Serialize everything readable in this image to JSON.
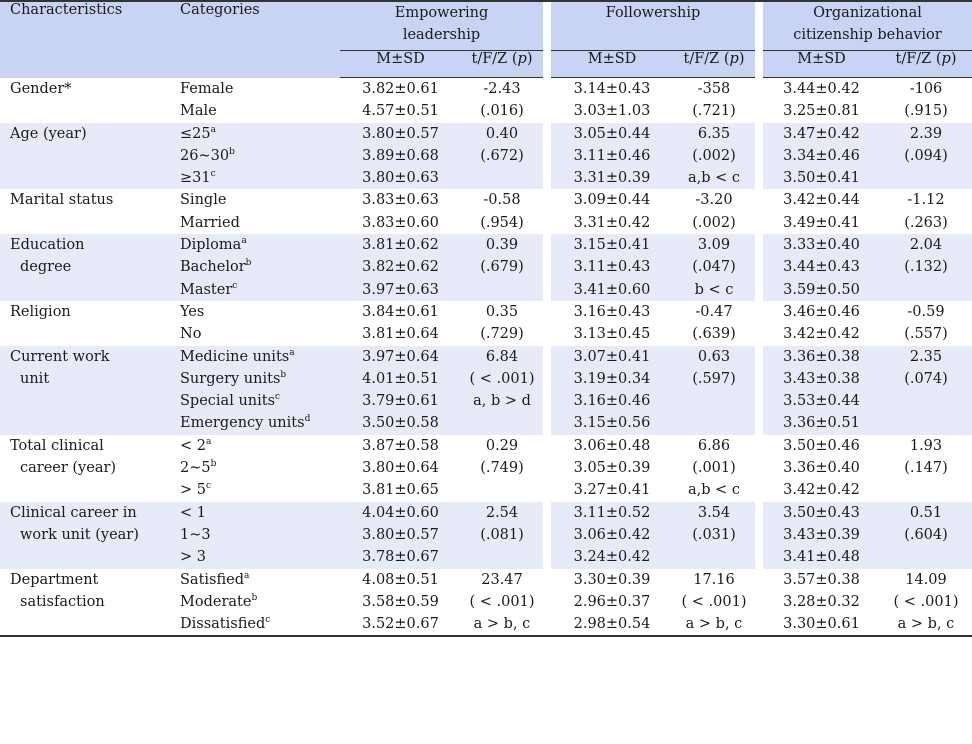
{
  "header": {
    "characteristics": "Characteristics",
    "categories": "Categories",
    "groups": [
      {
        "line1": "Empowering",
        "line2": "leadership"
      },
      {
        "line1": "Followership",
        "line2": ""
      },
      {
        "line1": "Organizational",
        "line2": "citizenship behavior"
      }
    ],
    "ms": "M±SD",
    "test": "t/F/Z (",
    "p": "p",
    "close": ")"
  },
  "rows": [
    {
      "char": [
        "Gender*"
      ],
      "cats": [
        {
          "t": "Female",
          "s": ""
        },
        {
          "t": "Male",
          "s": ""
        }
      ],
      "el_m": [
        "3.82±0.61",
        "4.57±0.51"
      ],
      "el_t": [
        "-2.43",
        "(.016)"
      ],
      "fo_m": [
        "3.14±0.43",
        "3.03±1.03"
      ],
      "fo_t": [
        "-358",
        "(.721)"
      ],
      "oc_m": [
        "3.44±0.42",
        "3.25±0.81"
      ],
      "oc_t": [
        "-106",
        "(.915)"
      ]
    },
    {
      "char": [
        "Age (year)"
      ],
      "cats": [
        {
          "t": "≤25",
          "s": "a"
        },
        {
          "t": "26~30",
          "s": "b"
        },
        {
          "t": "≥31",
          "s": "c"
        }
      ],
      "el_m": [
        "3.80±0.57",
        "3.89±0.68",
        "3.80±0.63"
      ],
      "el_t": [
        "0.40",
        "(.672)"
      ],
      "fo_m": [
        "3.05±0.44",
        "3.11±0.46",
        "3.31±0.39"
      ],
      "fo_t": [
        "6.35",
        "(.002)",
        "a,b < c"
      ],
      "oc_m": [
        "3.47±0.42",
        "3.34±0.46",
        "3.50±0.41"
      ],
      "oc_t": [
        "2.39",
        "(.094)"
      ]
    },
    {
      "char": [
        "Marital status"
      ],
      "cats": [
        {
          "t": "Single",
          "s": ""
        },
        {
          "t": "Married",
          "s": ""
        }
      ],
      "el_m": [
        "3.83±0.63",
        "3.83±0.60"
      ],
      "el_t": [
        "-0.58",
        "(.954)"
      ],
      "fo_m": [
        "3.09±0.44",
        "3.31±0.42"
      ],
      "fo_t": [
        "-3.20",
        "(.002)"
      ],
      "oc_m": [
        "3.42±0.44",
        "3.49±0.41"
      ],
      "oc_t": [
        "-1.12",
        "(.263)"
      ]
    },
    {
      "char": [
        "Education",
        "degree"
      ],
      "cats": [
        {
          "t": "Diploma",
          "s": "a"
        },
        {
          "t": "Bachelor",
          "s": "b"
        },
        {
          "t": "Master",
          "s": "c"
        }
      ],
      "el_m": [
        "3.81±0.62",
        "3.82±0.62",
        "3.97±0.63"
      ],
      "el_t": [
        "0.39",
        "(.679)"
      ],
      "fo_m": [
        "3.15±0.41",
        "3.11±0.43",
        "3.41±0.60"
      ],
      "fo_t": [
        "3.09",
        "(.047)",
        "b < c"
      ],
      "oc_m": [
        "3.33±0.40",
        "3.44±0.43",
        "3.59±0.50"
      ],
      "oc_t": [
        "2.04",
        "(.132)"
      ]
    },
    {
      "char": [
        "Religion"
      ],
      "cats": [
        {
          "t": "Yes",
          "s": ""
        },
        {
          "t": "No",
          "s": ""
        }
      ],
      "el_m": [
        "3.84±0.61",
        "3.81±0.64"
      ],
      "el_t": [
        "0.35",
        "(.729)"
      ],
      "fo_m": [
        "3.16±0.43",
        "3.13±0.45"
      ],
      "fo_t": [
        "-0.47",
        "(.639)"
      ],
      "oc_m": [
        "3.46±0.46",
        "3.42±0.42"
      ],
      "oc_t": [
        "-0.59",
        "(.557)"
      ]
    },
    {
      "char": [
        "Current work",
        "unit"
      ],
      "cats": [
        {
          "t": "Medicine units",
          "s": "a"
        },
        {
          "t": "Surgery units",
          "s": "b"
        },
        {
          "t": "Special units",
          "s": "c"
        },
        {
          "t": "Emergency units",
          "s": "d"
        }
      ],
      "el_m": [
        "3.97±0.64",
        "4.01±0.51",
        "3.79±0.61",
        "3.50±0.58"
      ],
      "el_t": [
        "6.84",
        "( < .001)",
        "a, b > d"
      ],
      "fo_m": [
        "3.07±0.41",
        "3.19±0.34",
        "3.16±0.46",
        "3.15±0.56"
      ],
      "fo_t": [
        "0.63",
        "(.597)"
      ],
      "oc_m": [
        "3.36±0.38",
        "3.43±0.38",
        "3.53±0.44",
        "3.36±0.51"
      ],
      "oc_t": [
        "2.35",
        "(.074)"
      ]
    },
    {
      "char": [
        "Total clinical",
        "career (year)"
      ],
      "cats": [
        {
          "t": "< 2",
          "s": "a"
        },
        {
          "t": "2~5",
          "s": "b"
        },
        {
          "t": "> 5",
          "s": "c"
        }
      ],
      "el_m": [
        "3.87±0.58",
        "3.80±0.64",
        "3.81±0.65"
      ],
      "el_t": [
        "0.29",
        "(.749)"
      ],
      "fo_m": [
        "3.06±0.48",
        "3.05±0.39",
        "3.27±0.41"
      ],
      "fo_t": [
        "6.86",
        "(.001)",
        "a,b < c"
      ],
      "oc_m": [
        "3.50±0.46",
        "3.36±0.40",
        "3.42±0.42"
      ],
      "oc_t": [
        "1.93",
        "(.147)"
      ]
    },
    {
      "char": [
        "Clinical career in",
        "work unit (year)"
      ],
      "cats": [
        {
          "t": "< 1",
          "s": ""
        },
        {
          "t": "1~3",
          "s": ""
        },
        {
          "t": "> 3",
          "s": ""
        }
      ],
      "el_m": [
        "4.04±0.60",
        "3.80±0.57",
        "3.78±0.67"
      ],
      "el_t": [
        "2.54",
        "(.081)"
      ],
      "fo_m": [
        "3.11±0.52",
        "3.06±0.42",
        "3.24±0.42"
      ],
      "fo_t": [
        "3.54",
        "(.031)"
      ],
      "oc_m": [
        "3.50±0.43",
        "3.43±0.39",
        "3.41±0.48"
      ],
      "oc_t": [
        "0.51",
        "(.604)"
      ]
    },
    {
      "char": [
        "Department",
        "satisfaction"
      ],
      "cats": [
        {
          "t": "Satisfied",
          "s": "a"
        },
        {
          "t": "Moderate",
          "s": "b"
        },
        {
          "t": "Dissatisfied",
          "s": "c"
        }
      ],
      "el_m": [
        "4.08±0.51",
        "3.58±0.59",
        "3.52±0.67"
      ],
      "el_t": [
        "23.47",
        "( < .001)",
        "a > b, c"
      ],
      "fo_m": [
        "3.30±0.39",
        "2.96±0.37",
        "2.98±0.54"
      ],
      "fo_t": [
        "17.16",
        "( < .001)",
        "a > b, c"
      ],
      "oc_m": [
        "3.57±0.38",
        "3.28±0.32",
        "3.30±0.61"
      ],
      "oc_t": [
        "14.09",
        "( < .001)",
        "a > b, c"
      ]
    }
  ]
}
